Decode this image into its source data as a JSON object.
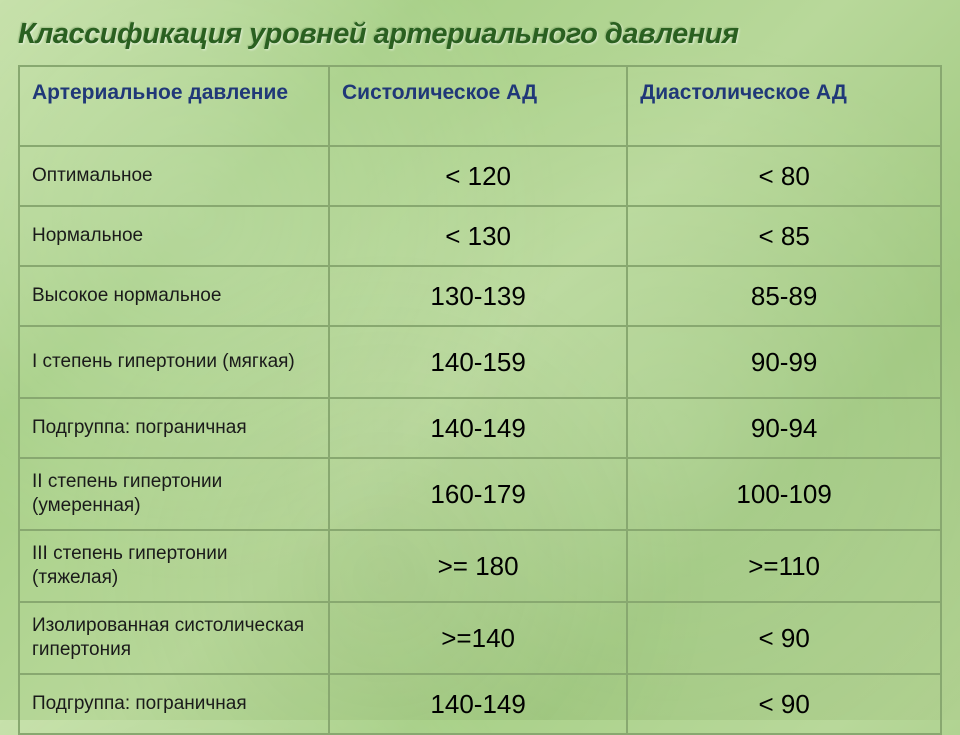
{
  "title": "Классификация уровней артериального давления",
  "table": {
    "columns": [
      "Артериальное давление",
      "Систолическое АД",
      "Диастолическое АД"
    ],
    "rows": [
      {
        "label": "Оптимальное",
        "systolic": "< 120",
        "diastolic": "< 80",
        "tall": false
      },
      {
        "label": "Нормальное",
        "systolic": "< 130",
        "diastolic": "< 85",
        "tall": false
      },
      {
        "label": "Высокое нормальное",
        "systolic": "130-139",
        "diastolic": "85-89",
        "tall": false
      },
      {
        "label": "I степень гипертонии (мягкая)",
        "systolic": "140-159",
        "diastolic": "90-99",
        "tall": true
      },
      {
        "label": "Подгруппа: пограничная",
        "systolic": "140-149",
        "diastolic": "90-94",
        "tall": false
      },
      {
        "label": "II степень гипертонии (умеренная)",
        "systolic": "160-179",
        "diastolic": "100-109",
        "tall": true
      },
      {
        "label": "III степень гипертонии (тяжелая)",
        "systolic": ">= 180",
        "diastolic": ">=110",
        "tall": true
      },
      {
        "label": "Изолированная систолическая гипертония",
        "systolic": ">=140",
        "diastolic": "< 90",
        "tall": true
      },
      {
        "label": "Подгруппа: пограничная",
        "systolic": "140-149",
        "diastolic": "< 90",
        "tall": false
      }
    ],
    "column_widths": [
      "310px",
      "auto",
      "auto"
    ],
    "border_color": "#88a870",
    "title_color": "#2a6020",
    "header_color": "#203878",
    "label_color": "#1a1a1a",
    "value_color": "#000000",
    "title_fontsize": 29,
    "header_fontsize": 21,
    "label_fontsize": 19,
    "value_fontsize": 26
  },
  "background_color": "#b8d89a"
}
